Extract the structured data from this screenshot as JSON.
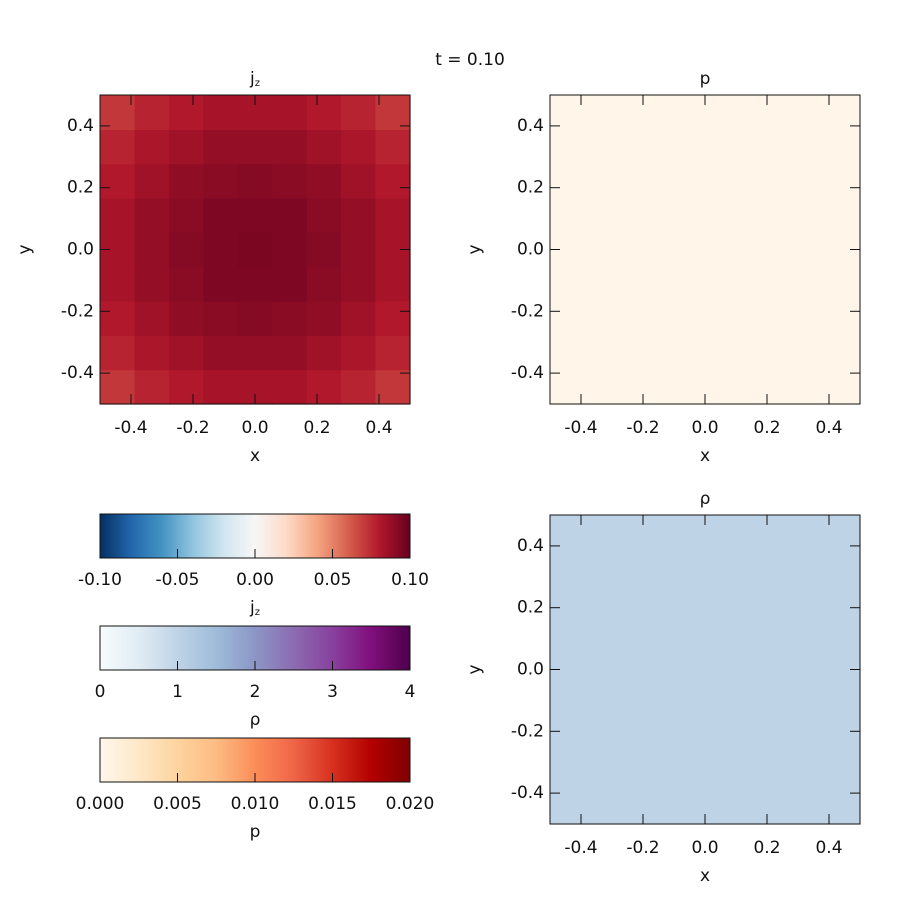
{
  "title": "t = 0.10",
  "chart_data": [
    {
      "type": "heatmap",
      "title": "j",
      "title_subscript": "z",
      "xlabel": "x",
      "ylabel": "y",
      "xlim": [
        -0.5,
        0.5
      ],
      "ylim": [
        -0.5,
        0.5
      ],
      "xticks": [
        -0.4,
        -0.2,
        {
          "value": 0,
          "label": "0.0"
        },
        0.2,
        0.4
      ],
      "yticks": [
        -0.4,
        -0.2,
        {
          "value": 0,
          "label": "0.0"
        },
        0.2,
        0.4
      ],
      "x": [
        -0.444,
        -0.333,
        -0.222,
        -0.111,
        0,
        0.111,
        0.222,
        0.333,
        0.444
      ],
      "y": [
        -0.444,
        -0.333,
        -0.222,
        -0.111,
        0,
        0.111,
        0.222,
        0.333,
        0.444
      ],
      "z": [
        [
          0.071,
          0.077,
          0.08,
          0.083,
          0.083,
          0.083,
          0.08,
          0.077,
          0.071
        ],
        [
          0.077,
          0.082,
          0.085,
          0.088,
          0.088,
          0.088,
          0.085,
          0.082,
          0.077
        ],
        [
          0.08,
          0.085,
          0.089,
          0.091,
          0.092,
          0.091,
          0.089,
          0.085,
          0.08
        ],
        [
          0.083,
          0.088,
          0.091,
          0.094,
          0.094,
          0.094,
          0.091,
          0.088,
          0.083
        ],
        [
          0.083,
          0.088,
          0.092,
          0.094,
          0.095,
          0.094,
          0.092,
          0.088,
          0.083
        ],
        [
          0.083,
          0.088,
          0.091,
          0.094,
          0.094,
          0.094,
          0.091,
          0.088,
          0.083
        ],
        [
          0.08,
          0.085,
          0.089,
          0.091,
          0.092,
          0.091,
          0.089,
          0.085,
          0.08
        ],
        [
          0.077,
          0.082,
          0.085,
          0.088,
          0.088,
          0.088,
          0.085,
          0.082,
          0.077
        ],
        [
          0.071,
          0.077,
          0.08,
          0.083,
          0.083,
          0.083,
          0.08,
          0.077,
          0.071
        ]
      ],
      "colorbar": {
        "label": "j",
        "label_subscript": "z",
        "lim": [
          -0.1,
          0.1
        ],
        "ticks": [
          {
            "value": -0.1,
            "label": "-0.10"
          },
          -0.05,
          {
            "value": 0,
            "label": "0.00"
          },
          0.05,
          {
            "value": 0.1,
            "label": "0.10"
          }
        ],
        "colors": [
          "#053061",
          "#2166ac",
          "#4393c3",
          "#92c5de",
          "#d1e5f0",
          "#f7f7f7",
          "#fddbc7",
          "#f4a582",
          "#d6604d",
          "#b2182b",
          "#67001f"
        ]
      }
    },
    {
      "type": "heatmap",
      "title": "p",
      "xlabel": "x",
      "ylabel": "y",
      "xlim": [
        -0.5,
        0.5
      ],
      "ylim": [
        -0.5,
        0.5
      ],
      "xticks": [
        -0.4,
        -0.2,
        {
          "value": 0,
          "label": "0.0"
        },
        0.2,
        0.4
      ],
      "yticks": [
        -0.4,
        -0.2,
        {
          "value": 0,
          "label": "0.0"
        },
        0.2,
        0.4
      ],
      "x": [
        0
      ],
      "y": [
        0
      ],
      "z": [
        [
          0.0003
        ]
      ],
      "colorbar": {
        "label": "p",
        "lim": [
          0,
          0.02
        ],
        "ticks": [
          {
            "value": 0,
            "label": "0.000"
          },
          0.005,
          {
            "value": 0.01,
            "label": "0.010"
          },
          0.015,
          {
            "value": 0.02,
            "label": "0.020"
          }
        ],
        "colors": [
          "#fff7ec",
          "#fee8c8",
          "#fdd49e",
          "#fdbb84",
          "#fc8d59",
          "#ef6548",
          "#d7301f",
          "#b30000",
          "#7f0000"
        ]
      }
    },
    {
      "type": "heatmap",
      "title": "ρ",
      "xlabel": "x",
      "ylabel": "y",
      "xlim": [
        -0.5,
        0.5
      ],
      "ylim": [
        -0.5,
        0.5
      ],
      "xticks": [
        -0.4,
        -0.2,
        {
          "value": 0,
          "label": "0.0"
        },
        0.2,
        0.4
      ],
      "yticks": [
        -0.4,
        -0.2,
        {
          "value": 0,
          "label": "0.0"
        },
        0.2,
        0.4
      ],
      "x": [
        0
      ],
      "y": [
        0
      ],
      "z": [
        [
          1.0
        ]
      ],
      "colorbar": {
        "label": "ρ",
        "lim": [
          0,
          4
        ],
        "ticks": [
          0,
          1,
          2,
          3,
          4
        ],
        "colors": [
          "#f7fcfd",
          "#e0ecf4",
          "#bfd3e6",
          "#9ebcda",
          "#8c96c6",
          "#8c6bb1",
          "#88419d",
          "#810f7c",
          "#4d004b"
        ]
      }
    }
  ]
}
